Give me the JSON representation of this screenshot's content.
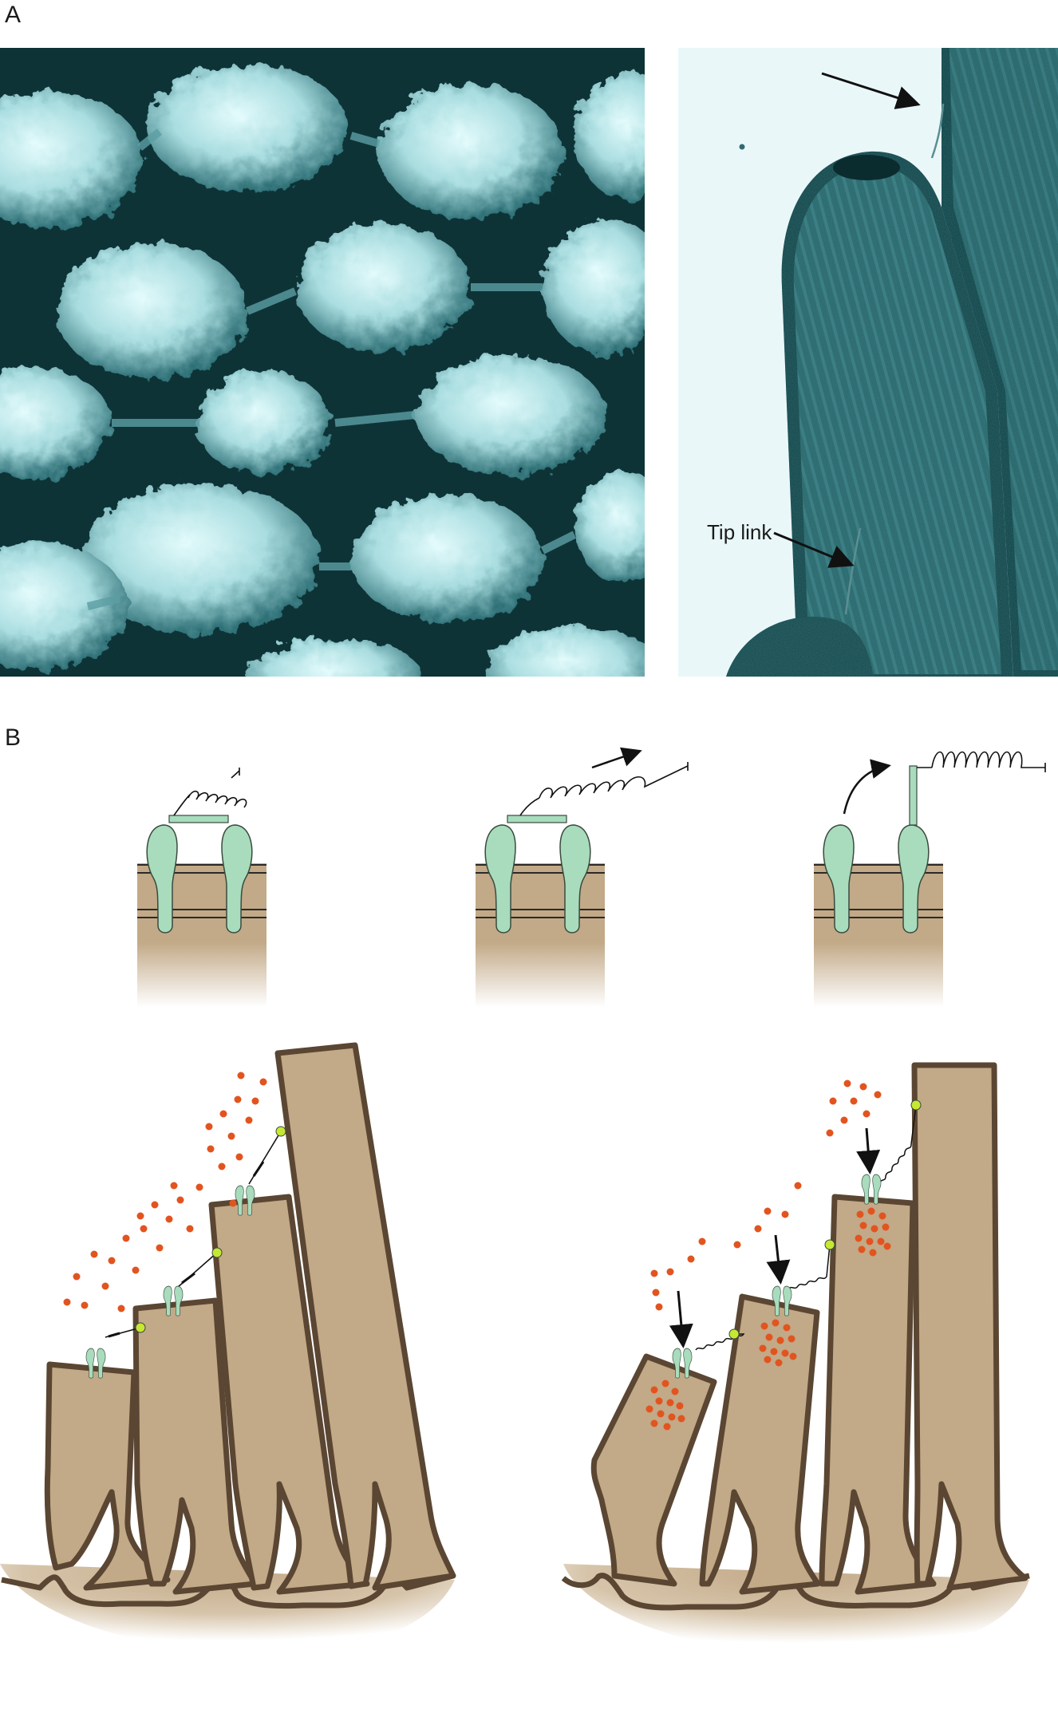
{
  "panel_a": {
    "letter": "A",
    "tip_link_label": "Tip link"
  },
  "panel_b": {
    "letter": "B"
  },
  "colors": {
    "micrograph_dark": "#0e3337",
    "micrograph_light": "#cfeff0",
    "stereocilium_fill": "#c2a987",
    "stereocilium_outline": "#5a4632",
    "channel_fill": "#a8dcbc",
    "channel_outline": "#3a4a3f",
    "ion_color": "#e2541f",
    "tip_link_anchor": "#c6e832"
  },
  "icons": {
    "arrows": "arrow-icon",
    "springs": "spring-icon"
  }
}
